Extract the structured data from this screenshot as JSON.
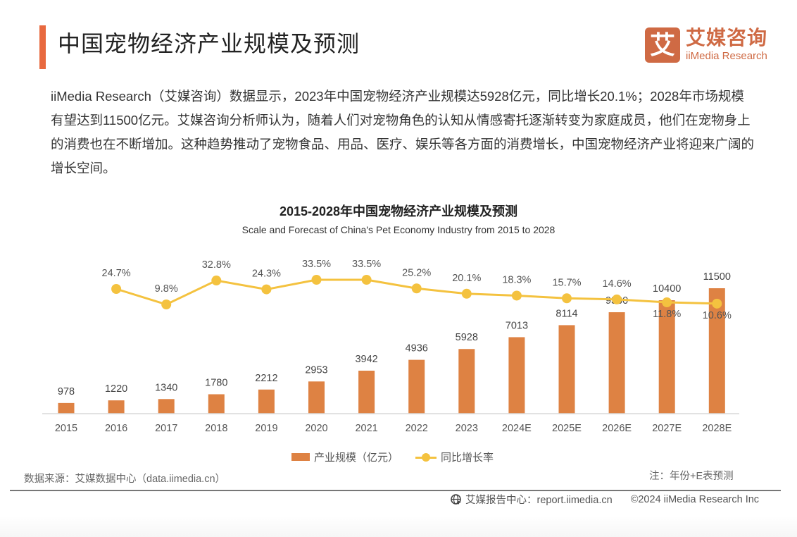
{
  "header": {
    "title": "中国宠物经济产业规模及预测",
    "logo_mark": "艾",
    "logo_cn": "艾媒咨询",
    "logo_en": "iiMedia Research"
  },
  "intro": {
    "text": "iiMedia Research（艾媒咨询）数据显示，2023年中国宠物经济产业规模达5928亿元，同比增长20.1%；2028年市场规模有望达到11500亿元。艾媒咨询分析师认为，随着人们对宠物角色的认知从情感寄托逐渐转变为家庭成员，他们在宠物身上的消费也在不断增加。这种趋势推动了宠物食品、用品、医疗、娱乐等各方面的消费增长，中国宠物经济产业将迎来广阔的增长空间。"
  },
  "colors": {
    "accent": "#e8693f",
    "brand": "#cf6a44",
    "bar": "#de8243",
    "line": "#f4c23f"
  },
  "chart_data": {
    "type": "bar+line",
    "title": "2015-2028年中国宠物经济产业规模及预测",
    "subtitle": "Scale and Forecast of China's Pet Economy Industry from 2015 to 2028",
    "categories": [
      "2015",
      "2016",
      "2017",
      "2018",
      "2019",
      "2020",
      "2021",
      "2022",
      "2023",
      "2024E",
      "2025E",
      "2026E",
      "2027E",
      "2028E"
    ],
    "series": [
      {
        "name": "产业规模（亿元）",
        "type": "bar",
        "values": [
          978,
          1220,
          1340,
          1780,
          2212,
          2953,
          3942,
          4936,
          5928,
          7013,
          8114,
          9300,
          10400,
          11500
        ],
        "labels": [
          "978",
          "1220",
          "1340",
          "1780",
          "2212",
          "2953",
          "3942",
          "4936",
          "5928",
          "7013",
          "8114",
          "9300",
          "10400",
          "11500"
        ]
      },
      {
        "name": "同比增长率",
        "type": "line",
        "values": [
          null,
          24.7,
          9.8,
          32.8,
          24.3,
          33.5,
          33.5,
          25.2,
          20.1,
          18.3,
          15.7,
          14.6,
          11.8,
          10.6
        ],
        "labels": [
          "",
          "24.7%",
          "9.8%",
          "32.8%",
          "24.3%",
          "33.5%",
          "33.5%",
          "25.2%",
          "20.1%",
          "18.3%",
          "15.7%",
          "14.6%",
          "11.8%",
          "10.6%"
        ]
      }
    ],
    "xlabel": "",
    "ylabel": "",
    "y_axis_visible": false,
    "grid": false,
    "legend_position": "bottom-center",
    "note": "注：年份+E表预测"
  },
  "footer": {
    "source": "数据来源：艾媒数据中心（data.iimedia.cn）",
    "report_center": "艾媒报告中心：report.iimedia.cn",
    "copyright": "©2024  iiMedia Research  Inc"
  }
}
